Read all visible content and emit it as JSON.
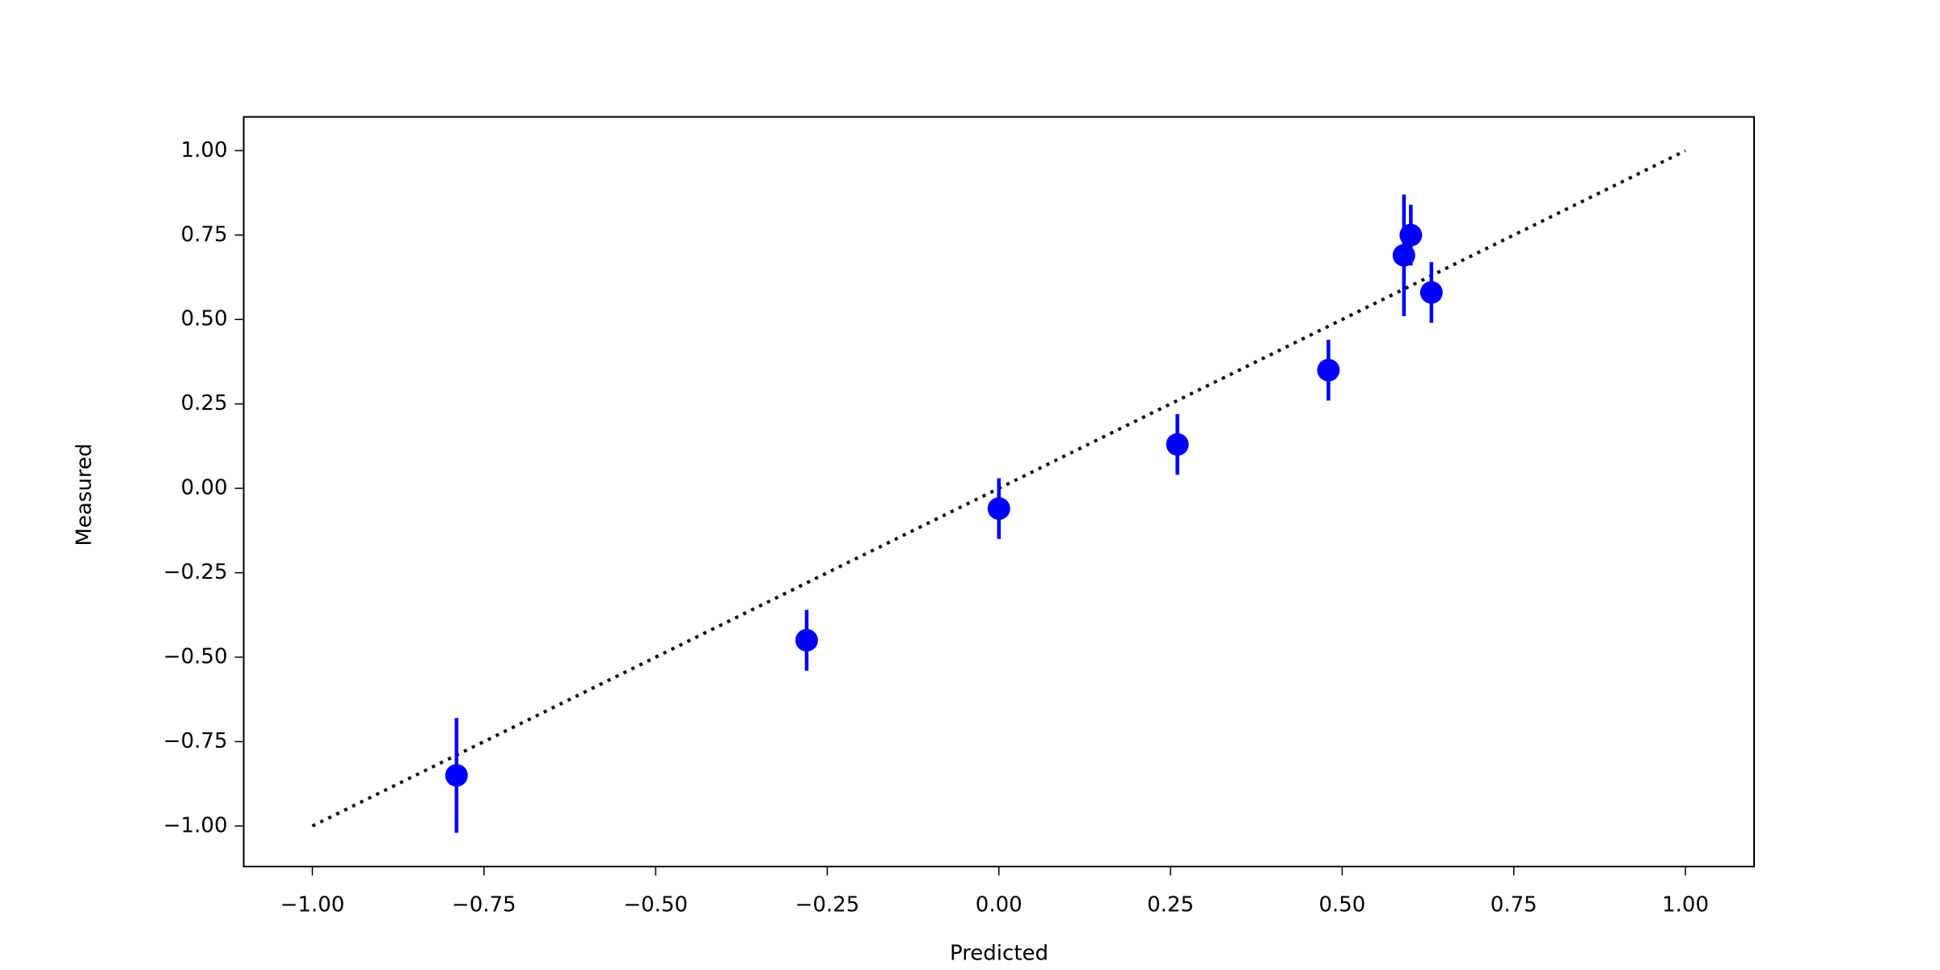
{
  "chart_data": {
    "type": "errorbar",
    "x_label": "Predicted",
    "y_label": "Measured",
    "xlim": [
      -1.1,
      1.1
    ],
    "ylim": [
      -1.12,
      1.1
    ],
    "xticks": [
      {
        "value": -1,
        "label": "−1.00"
      },
      {
        "value": -0.75,
        "label": "−0.75"
      },
      {
        "value": -0.5,
        "label": "−0.50"
      },
      {
        "value": -0.25,
        "label": "−0.25"
      },
      {
        "value": 0,
        "label": "0.00"
      },
      {
        "value": 0.25,
        "label": "0.25"
      },
      {
        "value": 0.5,
        "label": "0.50"
      },
      {
        "value": 0.75,
        "label": "0.75"
      },
      {
        "value": 1,
        "label": "1.00"
      }
    ],
    "yticks": [
      {
        "value": -1,
        "label": "−1.00"
      },
      {
        "value": -0.75,
        "label": "−0.75"
      },
      {
        "value": -0.5,
        "label": "−0.50"
      },
      {
        "value": -0.25,
        "label": "−0.25"
      },
      {
        "value": 0,
        "label": "0.00"
      },
      {
        "value": 0.25,
        "label": "0.25"
      },
      {
        "value": 0.5,
        "label": "0.50"
      },
      {
        "value": 0.75,
        "label": "0.75"
      },
      {
        "value": 1,
        "label": "1.00"
      }
    ],
    "grid": false,
    "x": [
      -0.79,
      -0.28,
      0.0,
      0.26,
      0.48,
      0.59,
      0.6,
      0.63
    ],
    "series": [
      {
        "color": "#0000ff",
        "values": [
          -0.85,
          -0.45,
          -0.06,
          0.13,
          0.35,
          0.69,
          0.75,
          0.58
        ],
        "errors": [
          0.17,
          0.09,
          0.09,
          0.09,
          0.09,
          0.18,
          0.09,
          0.09
        ]
      }
    ],
    "reference_line": {
      "x": [
        -1,
        1
      ],
      "values": [
        -1,
        1
      ],
      "color": "#000000",
      "style": "dotted"
    }
  }
}
